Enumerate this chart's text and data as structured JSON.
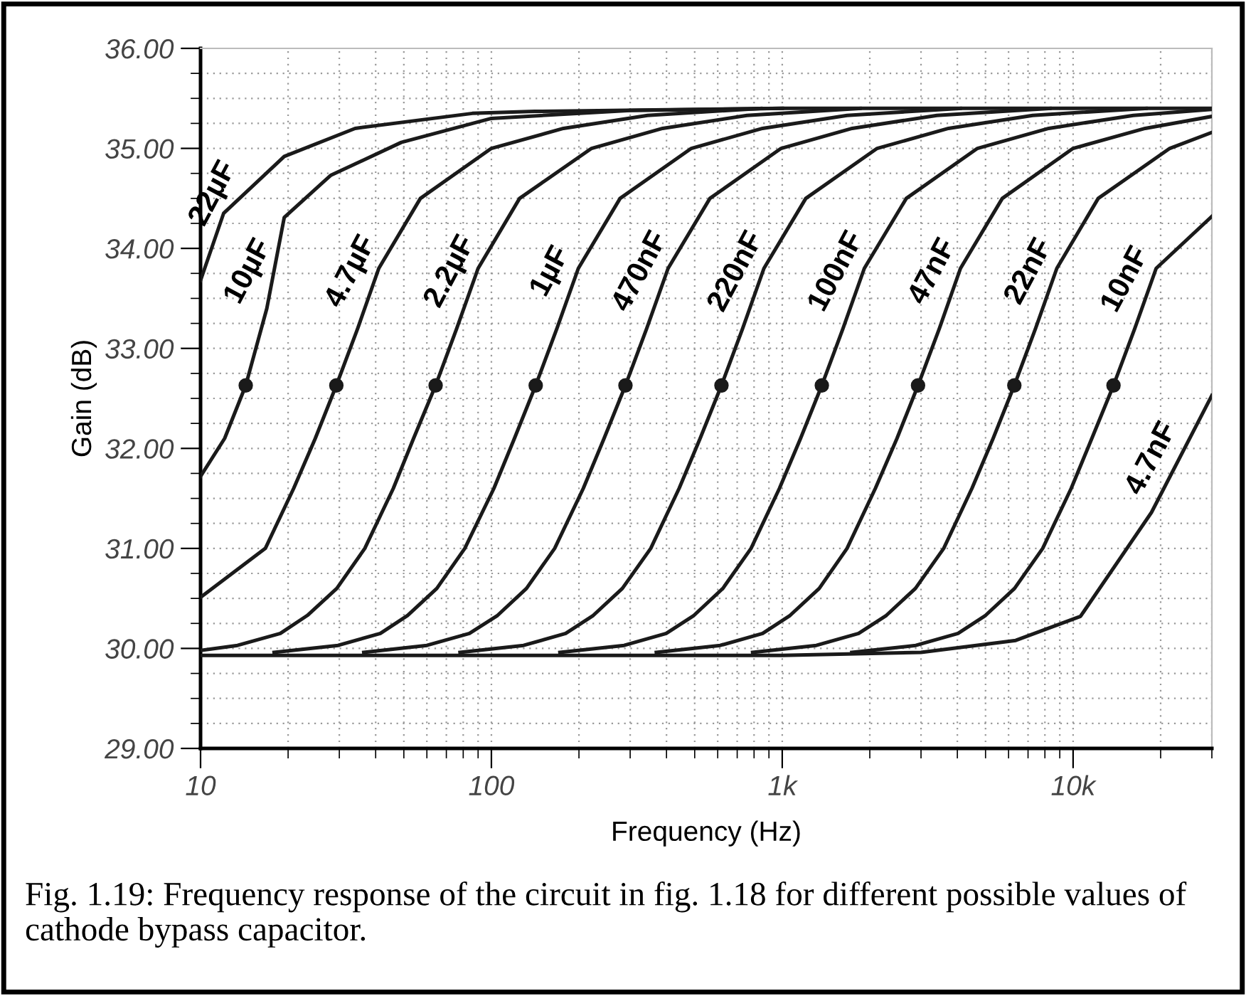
{
  "chart_data": {
    "type": "line",
    "xlabel": "Frequency (Hz)",
    "ylabel": "Gain (dB)",
    "log": "x",
    "xlim": [
      10,
      30000
    ],
    "ylim": [
      29,
      36
    ],
    "xticks": [
      10,
      100,
      {
        "value": 1000,
        "label": "1k"
      },
      {
        "value": 10000,
        "label": "10k"
      }
    ],
    "yticks": [
      {
        "value": 29,
        "label": "29.00"
      },
      {
        "value": 30,
        "label": "30.00"
      },
      {
        "value": 31,
        "label": "31.00"
      },
      {
        "value": 32,
        "label": "32.00"
      },
      {
        "value": 33,
        "label": "33.00"
      },
      {
        "value": 34,
        "label": "34.00"
      },
      {
        "value": 35,
        "label": "35.00"
      },
      {
        "value": 36,
        "label": "36.00"
      }
    ],
    "grid": true,
    "legend": false,
    "line_style": "solid",
    "marker": "none",
    "annotations": [
      "Fig. 1.19: Frequency response of the circuit in fig. 1.18 for different possible values of cathode bypass capacitor."
    ],
    "series": [
      {
        "name": "22µF",
        "color": "#1a1a1a",
        "x": [
          10,
          12,
          19.4,
          34,
          86,
          141,
          1000,
          30000
        ],
        "values": [
          33.68,
          34.35,
          34.92,
          35.2,
          35.35,
          35.37,
          35.4,
          35.4
        ]
      },
      {
        "name": "10µF",
        "color": "#1a1a1a",
        "x": [
          10,
          12.1,
          14.3,
          16.9,
          19.4,
          28,
          49,
          100,
          300,
          1000
        ],
        "values": [
          31.72,
          32.1,
          32.63,
          33.4,
          34.31,
          34.73,
          35.06,
          35.3,
          35.38,
          35.4
        ]
      },
      {
        "name": "4.7µF",
        "color": "#1a1a1a",
        "x": [
          10,
          16.7,
          20.9,
          24.8,
          29.3,
          34.7,
          41,
          57,
          100,
          177,
          344,
          844
        ],
        "values": [
          30.51,
          31.0,
          31.6,
          32.1,
          32.63,
          33.2,
          33.8,
          34.5,
          35.0,
          35.2,
          35.33,
          35.4
        ]
      },
      {
        "name": "2.2µF",
        "color": "#1a1a1a",
        "x": [
          10,
          13.4,
          18.8,
          23.3,
          29.4,
          36.7,
          46,
          54,
          64.3,
          76,
          90,
          125,
          221,
          388,
          756,
          1850
        ],
        "values": [
          29.98,
          30.03,
          30.15,
          30.33,
          30.6,
          31.0,
          31.6,
          32.1,
          32.63,
          33.2,
          33.8,
          34.5,
          35.0,
          35.2,
          35.33,
          35.4
        ]
      },
      {
        "name": "1µF",
        "color": "#1a1a1a",
        "x": [
          17.9,
          29.7,
          41.5,
          51.5,
          64.9,
          81,
          102,
          120,
          142,
          168,
          199,
          277,
          487,
          856,
          1670,
          4090
        ],
        "values": [
          29.96,
          30.03,
          30.15,
          30.33,
          30.6,
          31.0,
          31.6,
          32.1,
          32.63,
          33.2,
          33.8,
          34.5,
          35.0,
          35.2,
          35.33,
          35.4
        ]
      },
      {
        "name": "470nF",
        "color": "#1a1a1a",
        "x": [
          36.4,
          60,
          84,
          105,
          132,
          165,
          207,
          244,
          289,
          342,
          405,
          564,
          991,
          1740,
          3400,
          8320
        ],
        "values": [
          29.96,
          30.03,
          30.15,
          30.33,
          30.6,
          31.0,
          31.6,
          32.1,
          32.63,
          33.2,
          33.8,
          34.5,
          35.0,
          35.2,
          35.33,
          35.4
        ]
      },
      {
        "name": "220nF",
        "color": "#1a1a1a",
        "x": [
          78,
          129,
          180,
          224,
          282,
          353,
          442,
          522,
          618,
          731,
          865,
          1205,
          2120,
          3730,
          7260,
          17800
        ],
        "values": [
          29.96,
          30.03,
          30.15,
          30.33,
          30.6,
          31.0,
          31.6,
          32.1,
          32.63,
          33.2,
          33.8,
          34.5,
          35.0,
          35.2,
          35.33,
          35.4
        ]
      },
      {
        "name": "100nF",
        "color": "#1a1a1a",
        "x": [
          172,
          286,
          399,
          497,
          625,
          781,
          978,
          1156,
          1368,
          1618,
          1915,
          2670,
          4690,
          8250,
          16100,
          30000
        ],
        "values": [
          29.96,
          30.03,
          30.15,
          30.33,
          30.6,
          31.0,
          31.6,
          32.1,
          32.63,
          33.2,
          33.8,
          34.5,
          35.0,
          35.2,
          35.33,
          35.39
        ]
      },
      {
        "name": "47nF",
        "color": "#1a1a1a",
        "x": [
          369,
          612,
          856,
          1064,
          1340,
          1670,
          2090,
          2480,
          2930,
          3470,
          4100,
          5710,
          10000,
          17700,
          30000
        ],
        "values": [
          29.96,
          30.03,
          30.15,
          30.33,
          30.6,
          31.0,
          31.6,
          32.1,
          32.63,
          33.2,
          33.8,
          34.5,
          35.0,
          35.2,
          35.32
        ]
      },
      {
        "name": "22nF",
        "color": "#1a1a1a",
        "x": [
          791,
          1310,
          1830,
          2280,
          2870,
          3590,
          4490,
          5310,
          6280,
          7430,
          8790,
          12200,
          21500,
          30000
        ],
        "values": [
          29.96,
          30.03,
          30.15,
          30.33,
          30.6,
          31.0,
          31.6,
          32.1,
          32.63,
          33.2,
          33.8,
          34.5,
          35.0,
          35.16
        ]
      },
      {
        "name": "10nF",
        "color": "#1a1a1a",
        "x": [
          1735,
          2880,
          4020,
          5000,
          6290,
          7860,
          9850,
          11600,
          13770,
          16300,
          19300,
          30000
        ],
        "values": [
          29.96,
          30.03,
          30.15,
          30.33,
          30.6,
          31.0,
          31.6,
          32.1,
          32.63,
          33.2,
          33.8,
          34.32
        ]
      },
      {
        "name": "4.7nF",
        "color": "#1a1a1a",
        "x": [
          10,
          1000,
          3000,
          6350,
          10600,
          18600,
          30000
        ],
        "values": [
          29.93,
          29.93,
          29.96,
          30.08,
          30.32,
          31.36,
          32.53
        ]
      },
      {
        "type": "scatter",
        "color": "#1a1a1a",
        "marker": "circle",
        "x": [
          14.3,
          29.3,
          64.3,
          142,
          289,
          618,
          1368,
          2930,
          6280,
          13770
        ],
        "values": [
          32.63,
          32.63,
          32.63,
          32.63,
          32.63,
          32.63,
          32.63,
          32.63,
          32.63,
          32.63
        ]
      }
    ]
  }
}
